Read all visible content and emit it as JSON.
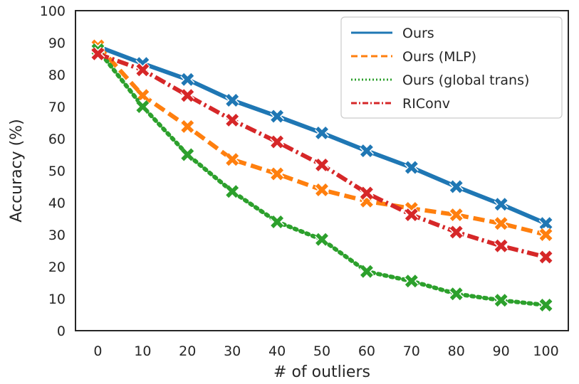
{
  "chart_data": {
    "type": "line",
    "title": "",
    "xlabel": "# of outliers",
    "ylabel": "Accuracy (%)",
    "x": [
      0,
      10,
      20,
      30,
      40,
      50,
      60,
      70,
      80,
      90,
      100
    ],
    "xticks": [
      "0",
      "10",
      "20",
      "30",
      "40",
      "50",
      "60",
      "70",
      "80",
      "90",
      "100"
    ],
    "yticks": [
      "0",
      "10",
      "20",
      "30",
      "40",
      "50",
      "60",
      "70",
      "80",
      "90",
      "100"
    ],
    "xlim": [
      -5,
      105
    ],
    "ylim": [
      0,
      100
    ],
    "grid": false,
    "legend_position": "top-right",
    "series": [
      {
        "name": "Ours",
        "color": "#1f77b4",
        "style": "solid",
        "values": [
          88.8,
          83.5,
          78.5,
          72.0,
          67.0,
          61.8,
          56.2,
          51.0,
          45.0,
          39.5,
          33.5
        ]
      },
      {
        "name": "Ours (MLP)",
        "color": "#ff7f0e",
        "style": "dashed",
        "values": [
          89.0,
          73.5,
          63.8,
          53.5,
          49.0,
          44.0,
          40.5,
          38.2,
          36.2,
          33.5,
          30.0
        ]
      },
      {
        "name": "Ours (global trans)",
        "color": "#2ca02c",
        "style": "dotted",
        "values": [
          87.8,
          70.0,
          55.0,
          43.5,
          34.0,
          28.5,
          18.5,
          15.5,
          11.5,
          9.5,
          8.0
        ]
      },
      {
        "name": "RIConv",
        "color": "#d62728",
        "style": "dashdot",
        "values": [
          86.5,
          81.5,
          73.5,
          65.8,
          59.0,
          51.8,
          43.0,
          36.2,
          30.8,
          26.5,
          23.0
        ]
      }
    ]
  }
}
